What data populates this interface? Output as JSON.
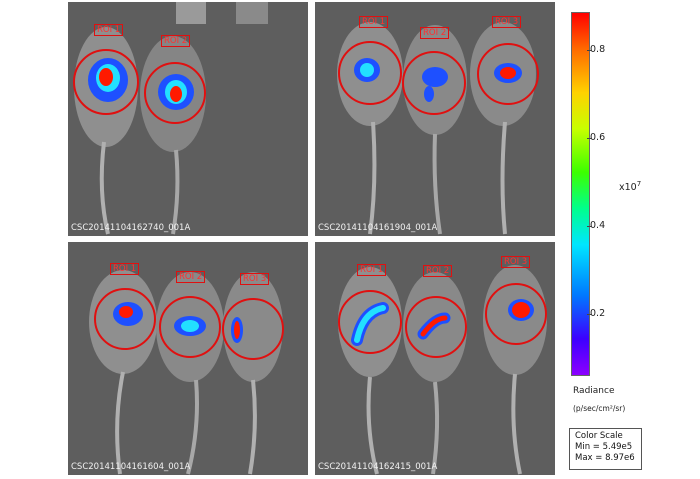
{
  "panels": [
    {
      "label": "CSC20141104162740_001A",
      "rois": [
        "ROI 1",
        "ROI 2"
      ]
    },
    {
      "label": "CSC20141104161904_001A",
      "rois": [
        "ROI 1",
        "ROI 2",
        "ROI 3"
      ]
    },
    {
      "label": "CSC20141104161604_001A",
      "rois": [
        "ROI 1",
        "ROI 2",
        "ROI 3"
      ]
    },
    {
      "label": "CSC20141104162415_001A",
      "rois": [
        "ROI 1",
        "ROI 2",
        "ROI 3"
      ]
    }
  ],
  "colorbar": {
    "ticks": [
      "0.8",
      "0.6",
      "0.4",
      "0.2"
    ],
    "exponent_base": "x10",
    "exponent_power": "7",
    "title": "Radiance",
    "unit": "(p/sec/cm²/sr)",
    "stops": [
      "#8c00ff",
      "#3c00ff",
      "#0078ff",
      "#00e6ff",
      "#00ff8c",
      "#3cff00",
      "#c8ff00",
      "#ffd200",
      "#ff6a00",
      "#ff0000"
    ]
  },
  "color_scale": {
    "title": "Color Scale",
    "min": "Min = 5.49e5",
    "max": "Max = 8.97e6"
  }
}
